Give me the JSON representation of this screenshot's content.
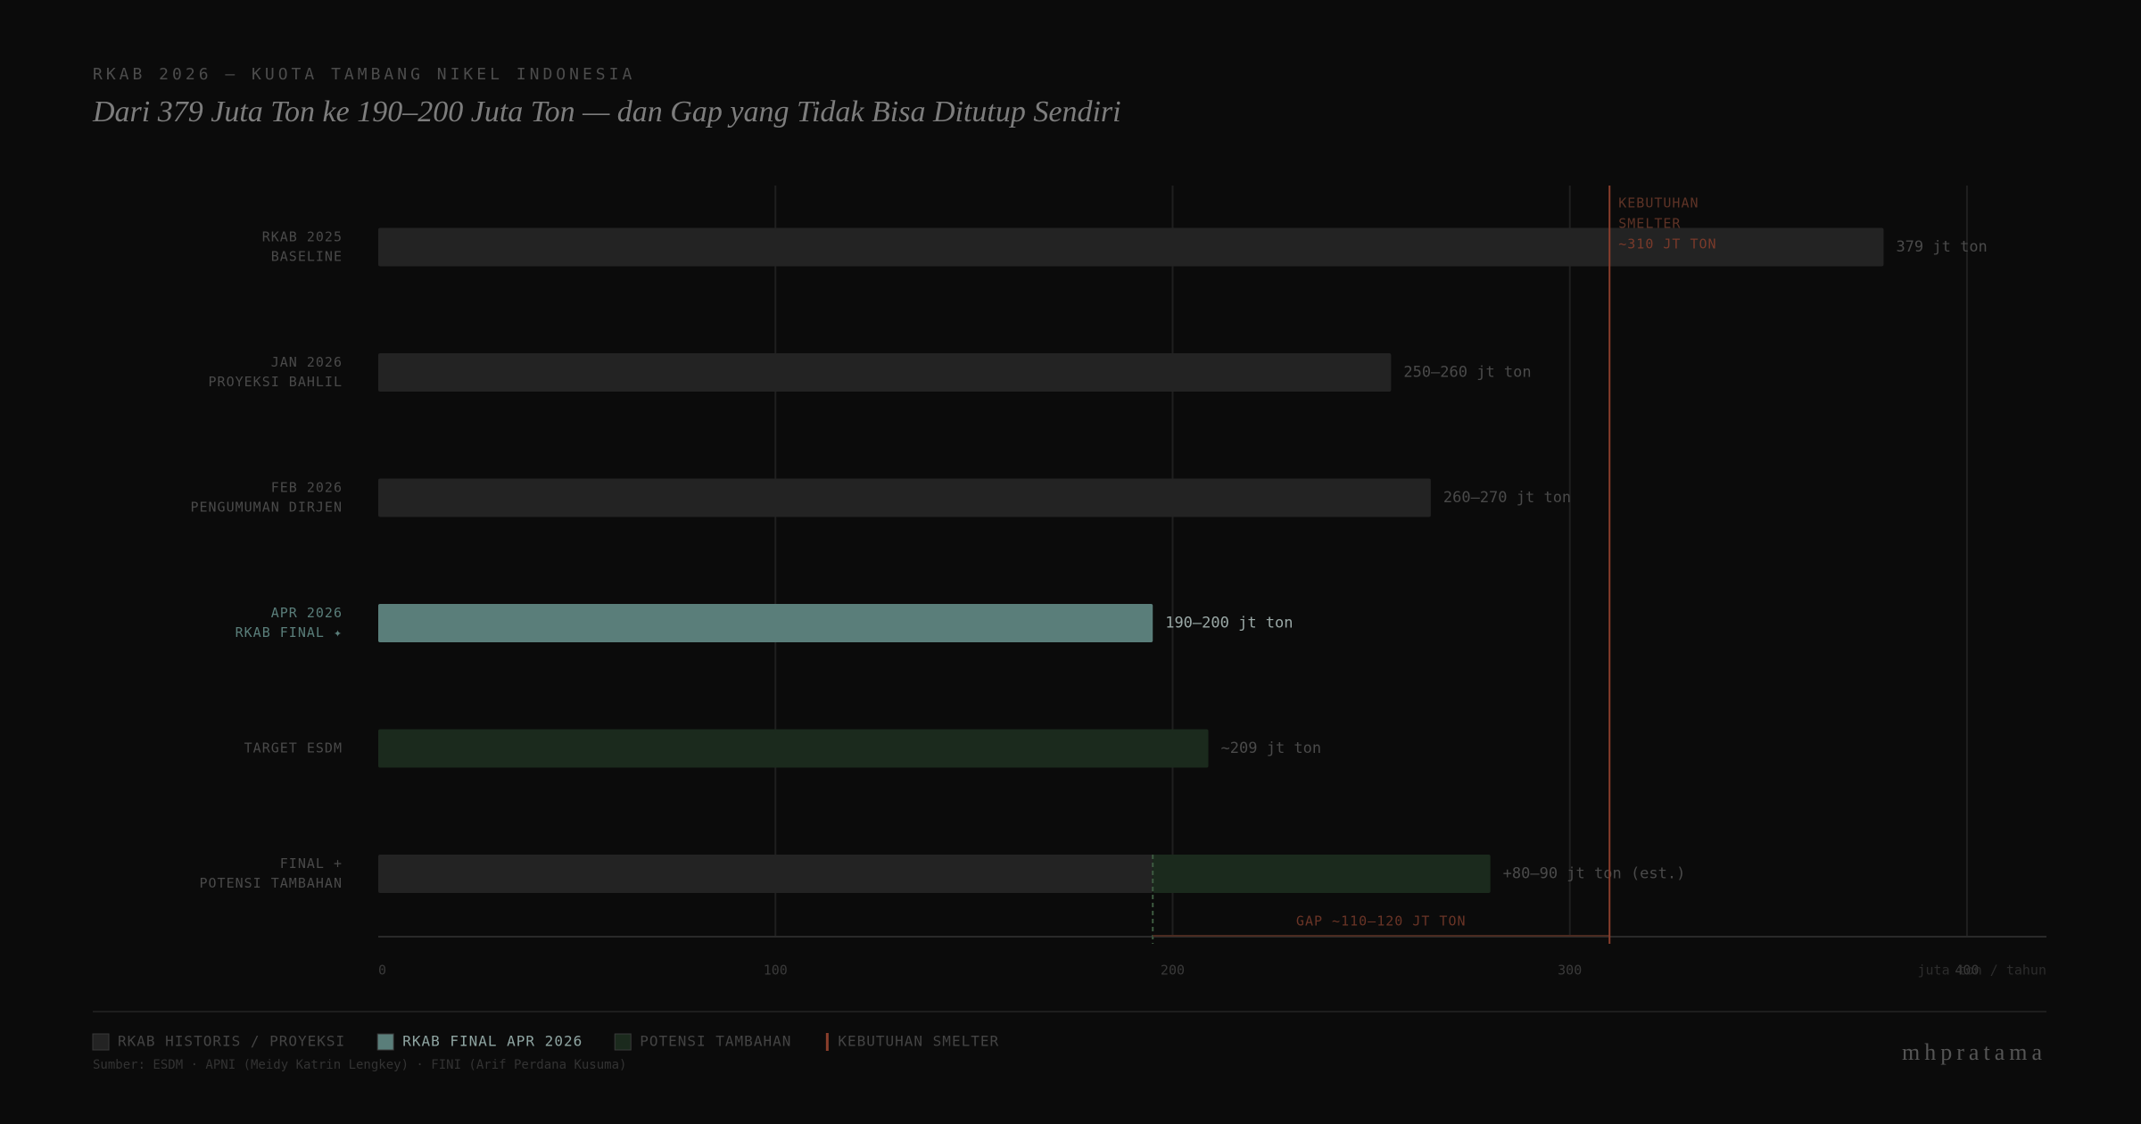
{
  "chart_data": {
    "type": "hbar-stacked",
    "eyebrow": "RKAB 2026 — KUOTA TAMBANG NIKEL INDONESIA",
    "title": "Dari 379 Juta Ton ke 190–200 Juta Ton — dan Gap yang Tidak Bisa Ditutup Sendiri",
    "categories": [
      [
        "RKAB 2025",
        "BASELINE"
      ],
      [
        "JAN 2026",
        "PROYEKSI BAHLIL"
      ],
      [
        "FEB 2026",
        "PENGUMUMAN DIRJEN"
      ],
      [
        "APR 2026",
        "RKAB FINAL ✦"
      ],
      [
        "TARGET ESDM"
      ],
      [
        "FINAL +",
        "POTENSI TAMBAHAN"
      ]
    ],
    "series": [
      {
        "name": "RKAB HISTORIS / PROYEKSI",
        "color": "#232323",
        "values": [
          379,
          255,
          265,
          null,
          null,
          195
        ],
        "value_labels": [
          "379 jt ton",
          "250–260 jt ton",
          "260–270 jt ton",
          null,
          null,
          null
        ]
      },
      {
        "name": "RKAB FINAL APR 2026",
        "color": "#5a7e7a",
        "highlight": true,
        "values": [
          null,
          null,
          null,
          195,
          null,
          null
        ],
        "value_labels": [
          null,
          null,
          null,
          "190–200 jt ton",
          null,
          null
        ]
      },
      {
        "name": "POTENSI TAMBAHAN",
        "color": "#1b2a1d",
        "values": [
          null,
          null,
          null,
          null,
          209,
          85
        ],
        "value_labels": [
          null,
          null,
          null,
          null,
          "~209 jt ton",
          "+80–90 jt ton (est.)"
        ]
      }
    ],
    "reference": {
      "name": "KEBUTUHAN SMELTER",
      "value": 310,
      "color": "#8a3e2c",
      "label": [
        "KEBUTUHAN",
        "SMELTER",
        "~310 JT TON"
      ]
    },
    "gap": {
      "label": "GAP ~110–120 JT TON",
      "range": [
        195,
        310
      ]
    },
    "xlim": [
      0,
      420
    ],
    "xticks": [
      0,
      100,
      200,
      300,
      400
    ],
    "x_label": "juta ton / tahun",
    "grid": true,
    "source": "Sumber: ESDM · APNI (Meidy Katrin Lengkey) · FINI (Arif Perdana Kusuma)",
    "brand": "mhpratama"
  }
}
